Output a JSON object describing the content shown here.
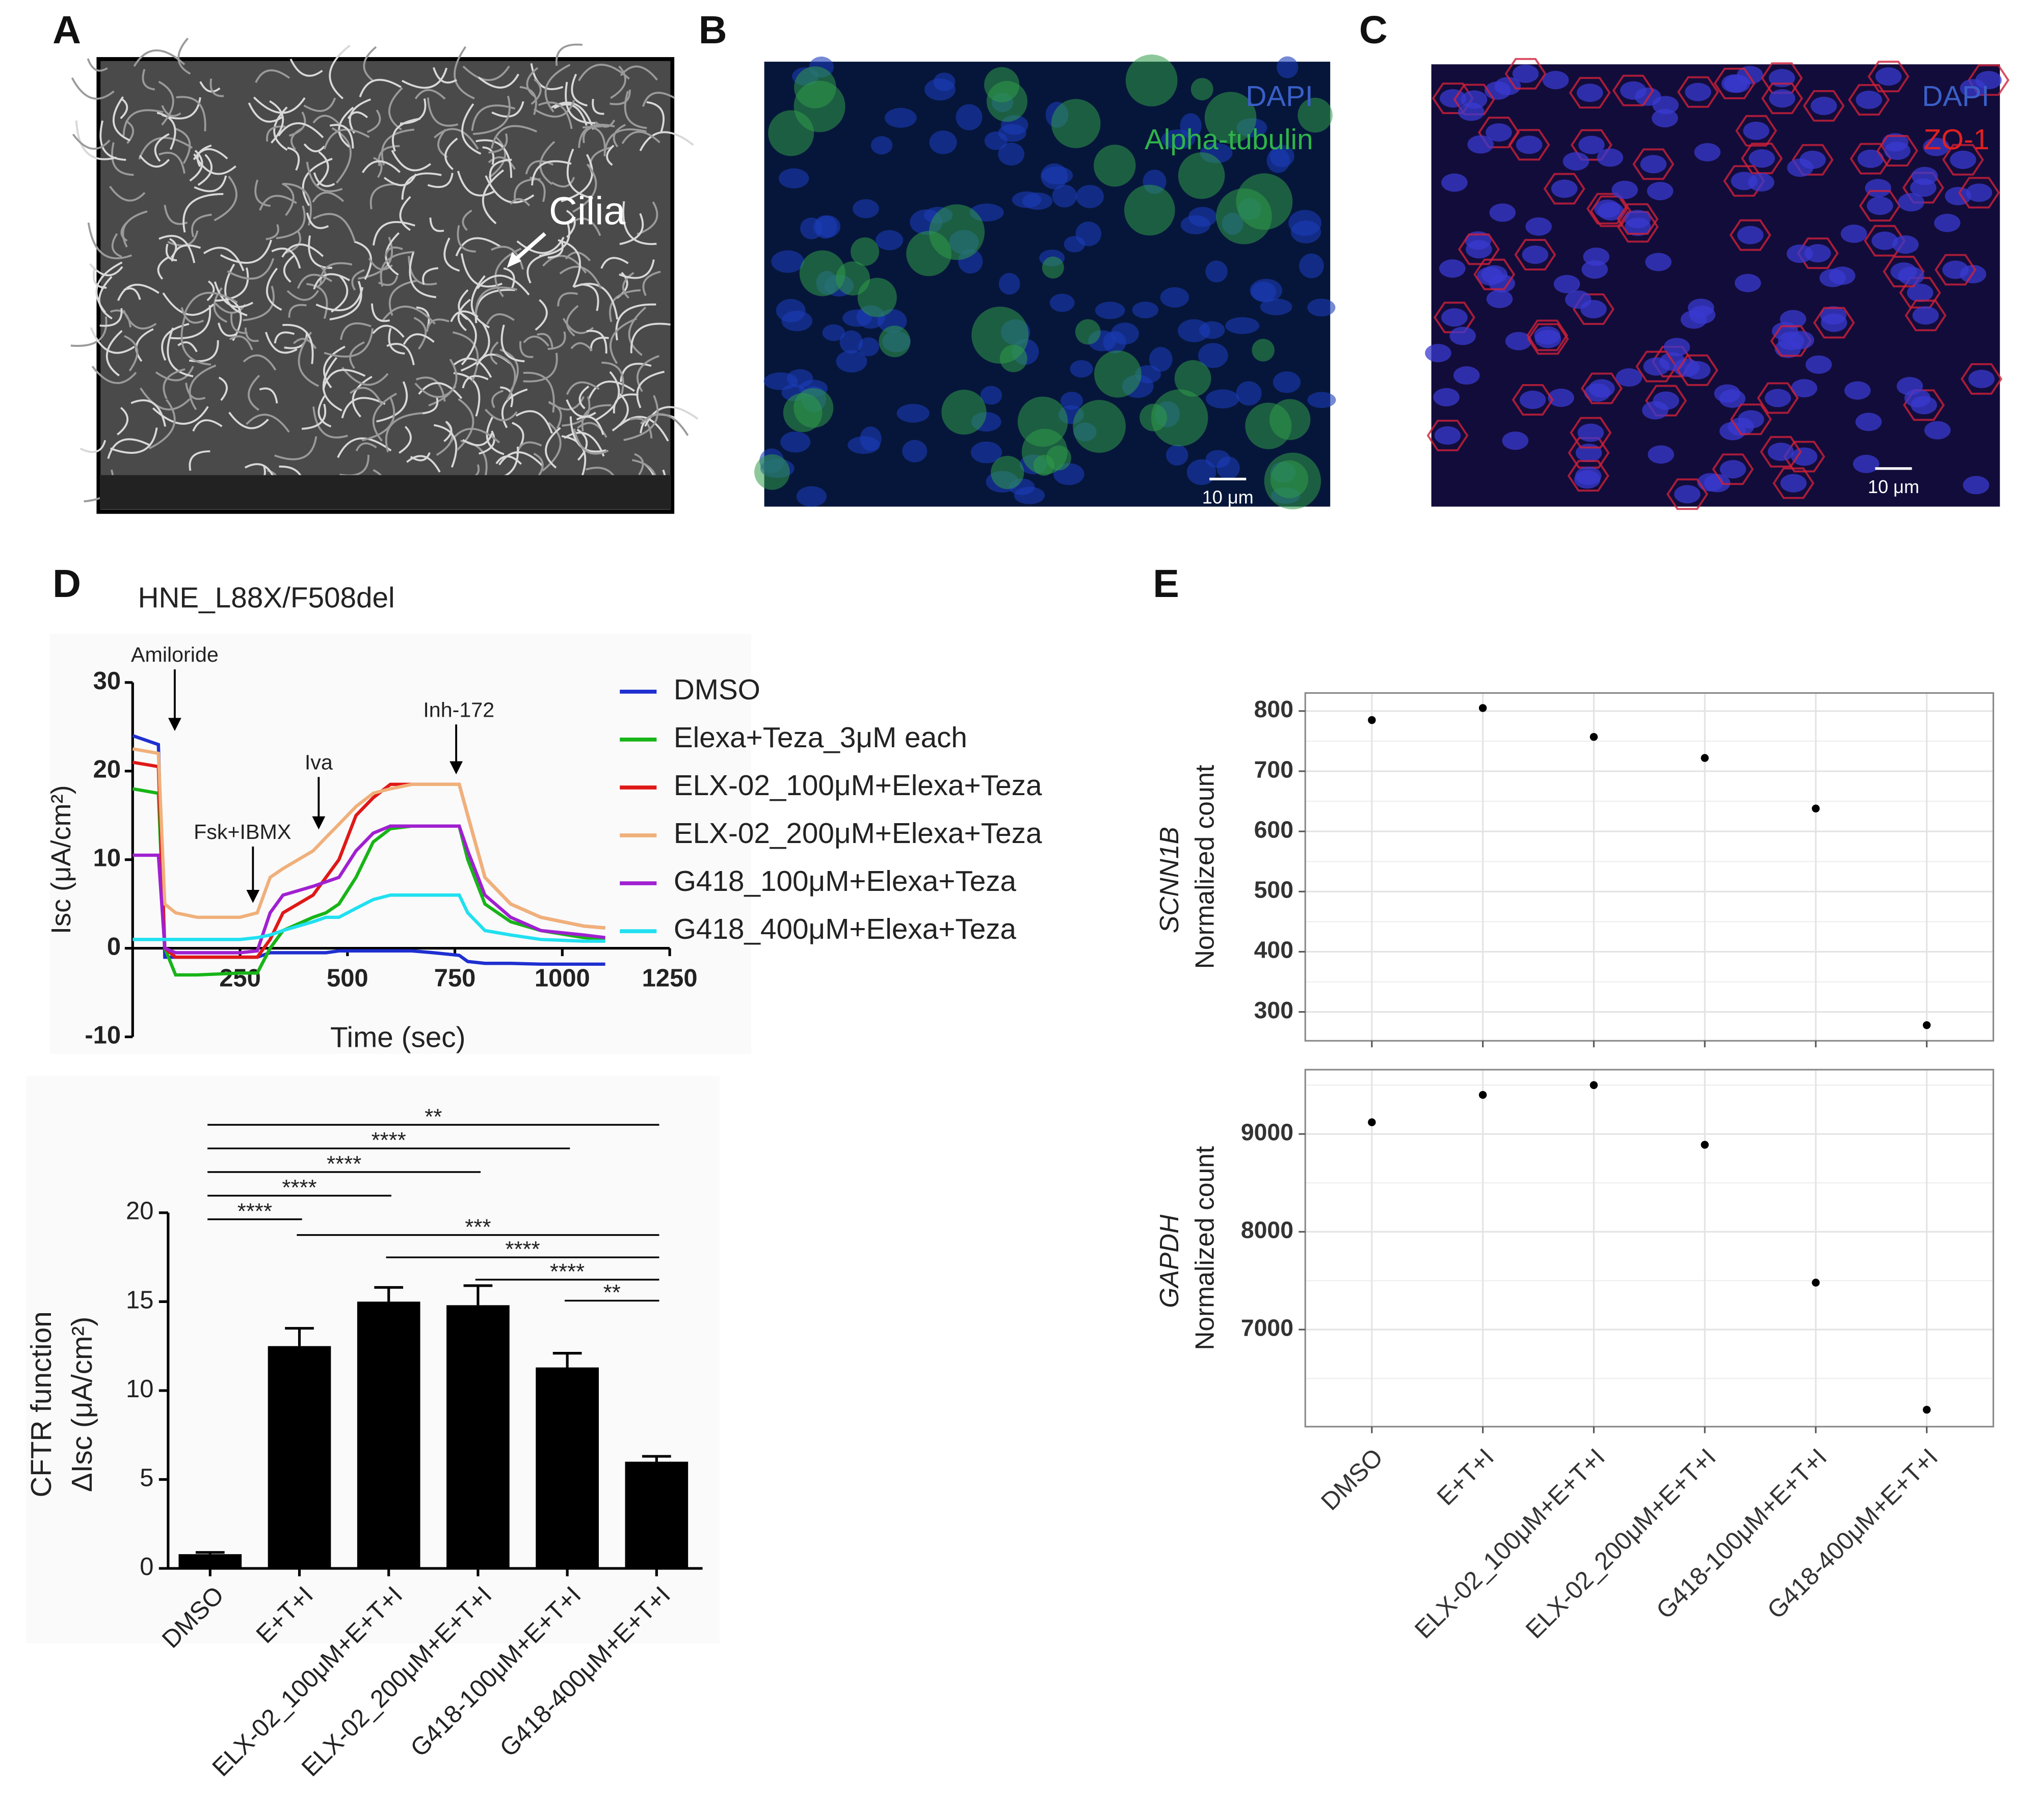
{
  "panels": [
    {
      "letter": "A",
      "labels": [
        "Cilia"
      ]
    },
    {
      "letter": "B",
      "labels": [
        "DAPI",
        "Alpha-tubulin",
        "10 μm"
      ]
    },
    {
      "letter": "C",
      "labels": [
        "DAPI",
        "ZO-1",
        "10 μm"
      ]
    },
    {
      "letter": "D"
    },
    {
      "letter": "E"
    }
  ],
  "chart_data": [
    {
      "type": "line",
      "title": "HNE_L88X/F508del",
      "xlabel": "Time (sec)",
      "ylabel": "Isc (μA/cm²)",
      "x": [
        0,
        60,
        75,
        100,
        150,
        250,
        290,
        320,
        350,
        420,
        450,
        480,
        520,
        560,
        600,
        650,
        700,
        760,
        780,
        820,
        880,
        950,
        1050,
        1100
      ],
      "xlim": [
        0,
        1250
      ],
      "xticks": [
        250,
        500,
        750,
        1000,
        1250
      ],
      "ylim": [
        -10,
        30
      ],
      "yticks": [
        -10,
        0,
        10,
        20,
        30
      ],
      "annotations": [
        {
          "text": "Amiloride",
          "x": 98
        },
        {
          "text": "Fsk+IBMX",
          "x": 280
        },
        {
          "text": "Iva",
          "x": 433
        },
        {
          "text": "Inh-172",
          "x": 753
        }
      ],
      "series": [
        {
          "name": "DMSO",
          "color": "#1f2fd0",
          "values": [
            24,
            23,
            -1,
            -1,
            -1,
            -1,
            -1,
            -0.5,
            -0.5,
            -0.5,
            -0.5,
            -0.3,
            -0.3,
            -0.3,
            -0.3,
            -0.3,
            -0.5,
            -0.8,
            -1.5,
            -1.7,
            -1.7,
            -1.8,
            -1.8,
            -1.8
          ]
        },
        {
          "name": "Elexa+Teza_3μM  each",
          "color": "#18b418",
          "values": [
            18,
            17.5,
            0,
            -3,
            -3,
            -2.8,
            -2.8,
            0,
            2,
            3.5,
            4,
            5,
            8,
            12,
            13.5,
            13.8,
            13.8,
            13.8,
            10,
            5,
            3,
            2,
            1.2,
            1
          ]
        },
        {
          "name": "ELX-02_100μM+Elexa+Teza",
          "color": "#e01818",
          "values": [
            21,
            20.5,
            0,
            -1,
            -1,
            -1,
            -1,
            1,
            4,
            6,
            8,
            10,
            15,
            17,
            18.5,
            18.5,
            18.5,
            18.5,
            15,
            8,
            5,
            3.5,
            2.5,
            2.3
          ]
        },
        {
          "name": "ELX-02_200μM+Elexa+Teza",
          "color": "#f0b07a",
          "values": [
            22.5,
            22,
            5,
            4,
            3.5,
            3.5,
            4,
            8,
            9,
            11,
            12.5,
            14,
            16,
            17.5,
            18,
            18.5,
            18.5,
            18.5,
            15,
            8,
            5,
            3.5,
            2.5,
            2.3
          ]
        },
        {
          "name": "G418_100μM+Elexa+Teza",
          "color": "#a020d0",
          "values": [
            10.5,
            10.5,
            0,
            -0.5,
            -0.5,
            -0.5,
            -0.3,
            4,
            6,
            7,
            7.5,
            8,
            11,
            13,
            13.8,
            13.8,
            13.8,
            13.8,
            11,
            6,
            3.5,
            2,
            1.5,
            1.2
          ]
        },
        {
          "name": "G418_400μM+Elexa+Teza",
          "color": "#20e0f0",
          "values": [
            1,
            1,
            1,
            1,
            1,
            1,
            1.2,
            1.5,
            2,
            3,
            3.5,
            3.5,
            4.5,
            5.5,
            6,
            6,
            6,
            6,
            4,
            2,
            1.5,
            1,
            0.8,
            0.8
          ]
        }
      ]
    },
    {
      "type": "bar",
      "ylabel": [
        "CFTR function",
        "ΔIsc (μA/cm²)"
      ],
      "categories": [
        "DMSO",
        "E+T+I",
        "ELX-02_100μM+E+T+I",
        "ELX-02_200μM+E+T+I",
        "G418-100μM+E+T+I",
        "G418-400μM+E+T+I"
      ],
      "values": [
        0.8,
        12.5,
        15,
        14.8,
        11.3,
        6
      ],
      "errors": [
        0.1,
        1,
        0.8,
        1.1,
        0.8,
        0.3
      ],
      "color": "#000000",
      "ylim": [
        0,
        20
      ],
      "yticks": [
        0,
        5,
        10,
        15,
        20
      ],
      "significance": [
        {
          "from": 0,
          "to": 5,
          "label": "**"
        },
        {
          "from": 0,
          "to": 4,
          "label": "****"
        },
        {
          "from": 0,
          "to": 3,
          "label": "****"
        },
        {
          "from": 0,
          "to": 2,
          "label": "****"
        },
        {
          "from": 0,
          "to": 1,
          "label": "****"
        },
        {
          "from": 1,
          "to": 5,
          "label": "***"
        },
        {
          "from": 2,
          "to": 5,
          "label": "****"
        },
        {
          "from": 3,
          "to": 5,
          "label": "****"
        },
        {
          "from": 4,
          "to": 5,
          "label": "**"
        }
      ]
    },
    {
      "type": "dot",
      "categories": [
        "DMSO",
        "E+T+I",
        "ELX-02_100μM+E+T+I",
        "ELX-02_200μM+E+T+I",
        "G418-100μM+E+T+I",
        "G418-400μM+E+T+I"
      ],
      "grid": true,
      "facets": [
        {
          "gene": "SCNN1B",
          "ylabel": "Normalized count",
          "values": [
            785,
            805,
            757,
            722,
            638,
            278
          ],
          "ylim": [
            252,
            830
          ],
          "yticks": [
            300,
            400,
            500,
            600,
            700,
            800
          ]
        },
        {
          "gene": "GAPDH",
          "ylabel": "Normalized count",
          "values": [
            9120,
            9400,
            9500,
            8890,
            7480,
            6180
          ],
          "ylim": [
            6007,
            9658
          ],
          "yticks": [
            7000,
            8000,
            9000
          ]
        }
      ]
    }
  ]
}
